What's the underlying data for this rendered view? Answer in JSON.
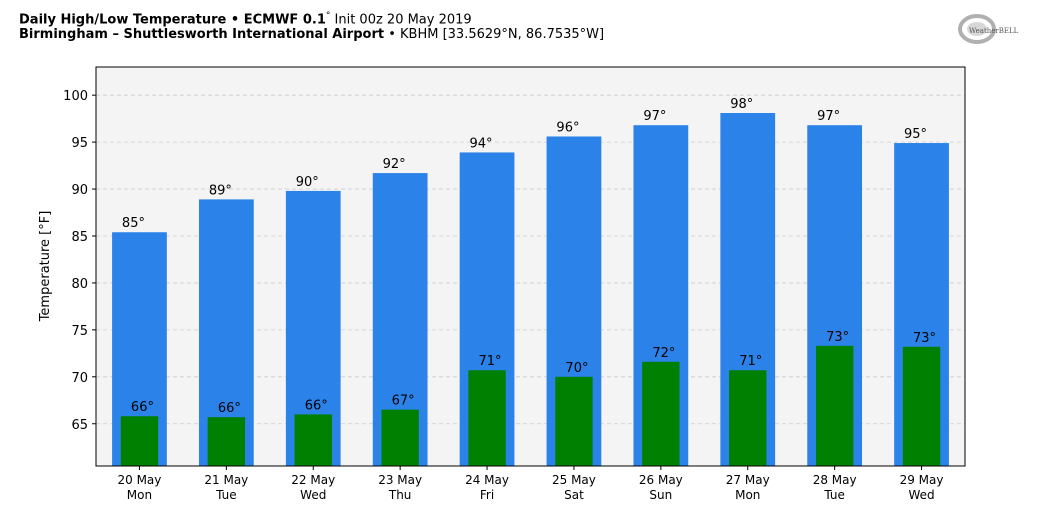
{
  "header": {
    "title_bold": "Daily High/Low Temperature • ECMWF 0.1",
    "title_deg": "°",
    "title_rest": " Init 00z 20 May 2019",
    "location_bold": "Birmingham – Shuttlesworth International Airport",
    "location_rest": " • KBHM [33.5629°N, 86.7535°W]"
  },
  "logo": {
    "text": "WeatherBELL",
    "icon": "weatherbell-logo"
  },
  "colors": {
    "high": "#2b83ea",
    "low": "#008000",
    "plot_bg": "#f4f4f4",
    "grid": "#cccccc"
  },
  "chart_data": {
    "type": "bar",
    "ylabel": "Temperature [°F]",
    "ylim": [
      60.5,
      103
    ],
    "yticks": [
      65,
      70,
      75,
      80,
      85,
      90,
      95,
      100
    ],
    "grid": true,
    "categories": [
      [
        "20 May",
        "Mon"
      ],
      [
        "21 May",
        "Tue"
      ],
      [
        "22 May",
        "Wed"
      ],
      [
        "23 May",
        "Thu"
      ],
      [
        "24 May",
        "Fri"
      ],
      [
        "25 May",
        "Sat"
      ],
      [
        "26 May",
        "Sun"
      ],
      [
        "27 May",
        "Mon"
      ],
      [
        "28 May",
        "Tue"
      ],
      [
        "29 May",
        "Wed"
      ]
    ],
    "series": [
      {
        "values": [
          85.4,
          88.9,
          89.8,
          91.7,
          93.9,
          95.6,
          96.8,
          98.1,
          96.8,
          94.9
        ],
        "labels": [
          "85°",
          "89°",
          "90°",
          "92°",
          "94°",
          "96°",
          "97°",
          "98°",
          "97°",
          "95°"
        ]
      },
      {
        "values": [
          65.8,
          65.7,
          66.0,
          66.5,
          70.7,
          70.0,
          71.6,
          70.7,
          73.3,
          73.2
        ],
        "labels": [
          "66°",
          "66°",
          "66°",
          "67°",
          "71°",
          "70°",
          "72°",
          "71°",
          "73°",
          "73°"
        ]
      }
    ]
  }
}
